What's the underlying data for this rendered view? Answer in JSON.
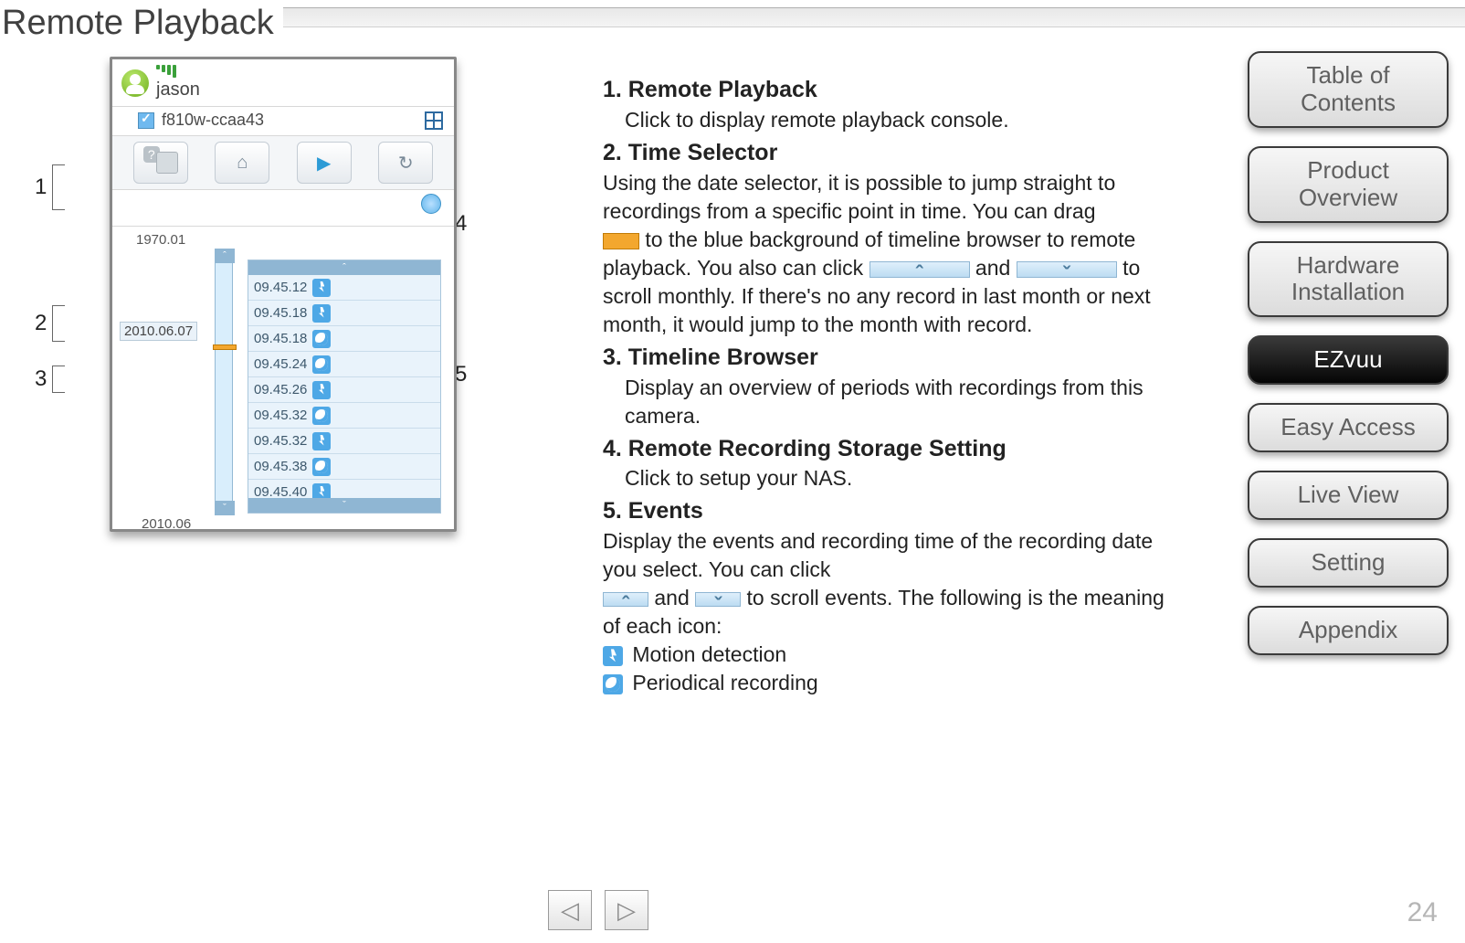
{
  "page": {
    "title": "Remote Playback",
    "number": "24"
  },
  "colors": {
    "accent_blue": "#4ea8e6",
    "timeline_bg": "#d9eefc",
    "timeline_border": "#93b9d4",
    "handle": "#f3a72e",
    "nav_button_bg": "#e8e8e8",
    "nav_button_active_bg": "#111111",
    "nav_button_text": "#606060",
    "nav_button_active_text": "#ffffff",
    "page_number": "#b6b6b6"
  },
  "screenshot": {
    "user": "jason",
    "device": "f810w-ccaa43",
    "timeline": {
      "top_label": "1970.01",
      "current_label": "2010.06.07",
      "bottom_label": "2010.06"
    },
    "events": [
      {
        "time": "09.45.12",
        "type": "motion"
      },
      {
        "time": "09.45.18",
        "type": "motion"
      },
      {
        "time": "09.45.18",
        "type": "period"
      },
      {
        "time": "09.45.24",
        "type": "period"
      },
      {
        "time": "09.45.26",
        "type": "motion"
      },
      {
        "time": "09.45.32",
        "type": "period"
      },
      {
        "time": "09.45.32",
        "type": "motion"
      },
      {
        "time": "09.45.38",
        "type": "period"
      },
      {
        "time": "09.45.40",
        "type": "motion"
      }
    ],
    "callouts": {
      "c1": "1",
      "c2": "2",
      "c3": "3",
      "c4": "4",
      "c5": "5"
    }
  },
  "sections": {
    "s1": {
      "heading": "1. Remote Playback",
      "body": "Click to display remote playback console."
    },
    "s2": {
      "heading": "2. Time Selector",
      "body_a": "Using the date selector, it is possible to jump straight to recordings from a specific point in time. You can drag ",
      "body_b": " to the blue background of timeline browser to remote playback. You also can click ",
      "body_c": " and ",
      "body_d": " to scroll monthly. If there's no any record in last month or next month, it would jump to the month with record."
    },
    "s3": {
      "heading": "3. Timeline Browser",
      "body": "Display an overview of periods with recordings from this camera."
    },
    "s4": {
      "heading": "4. Remote Recording Storage Setting",
      "body": "Click to setup your NAS."
    },
    "s5": {
      "heading": "5. Events",
      "body_a": "Display the events and recording time of the recording date you select. You can click ",
      "body_b": " and ",
      "body_c": " to scroll events. The following is the meaning of each icon:",
      "legend_motion": "Motion detection",
      "legend_period": "Periodical recording"
    }
  },
  "nav": [
    {
      "label": "Table of\nContents",
      "active": false
    },
    {
      "label": "Product\nOverview",
      "active": false
    },
    {
      "label": "Hardware\nInstallation",
      "active": false
    },
    {
      "label": "EZvuu",
      "active": true
    },
    {
      "label": "Easy Access",
      "active": false
    },
    {
      "label": "Live View",
      "active": false
    },
    {
      "label": "Setting",
      "active": false
    },
    {
      "label": "Appendix",
      "active": false
    }
  ]
}
